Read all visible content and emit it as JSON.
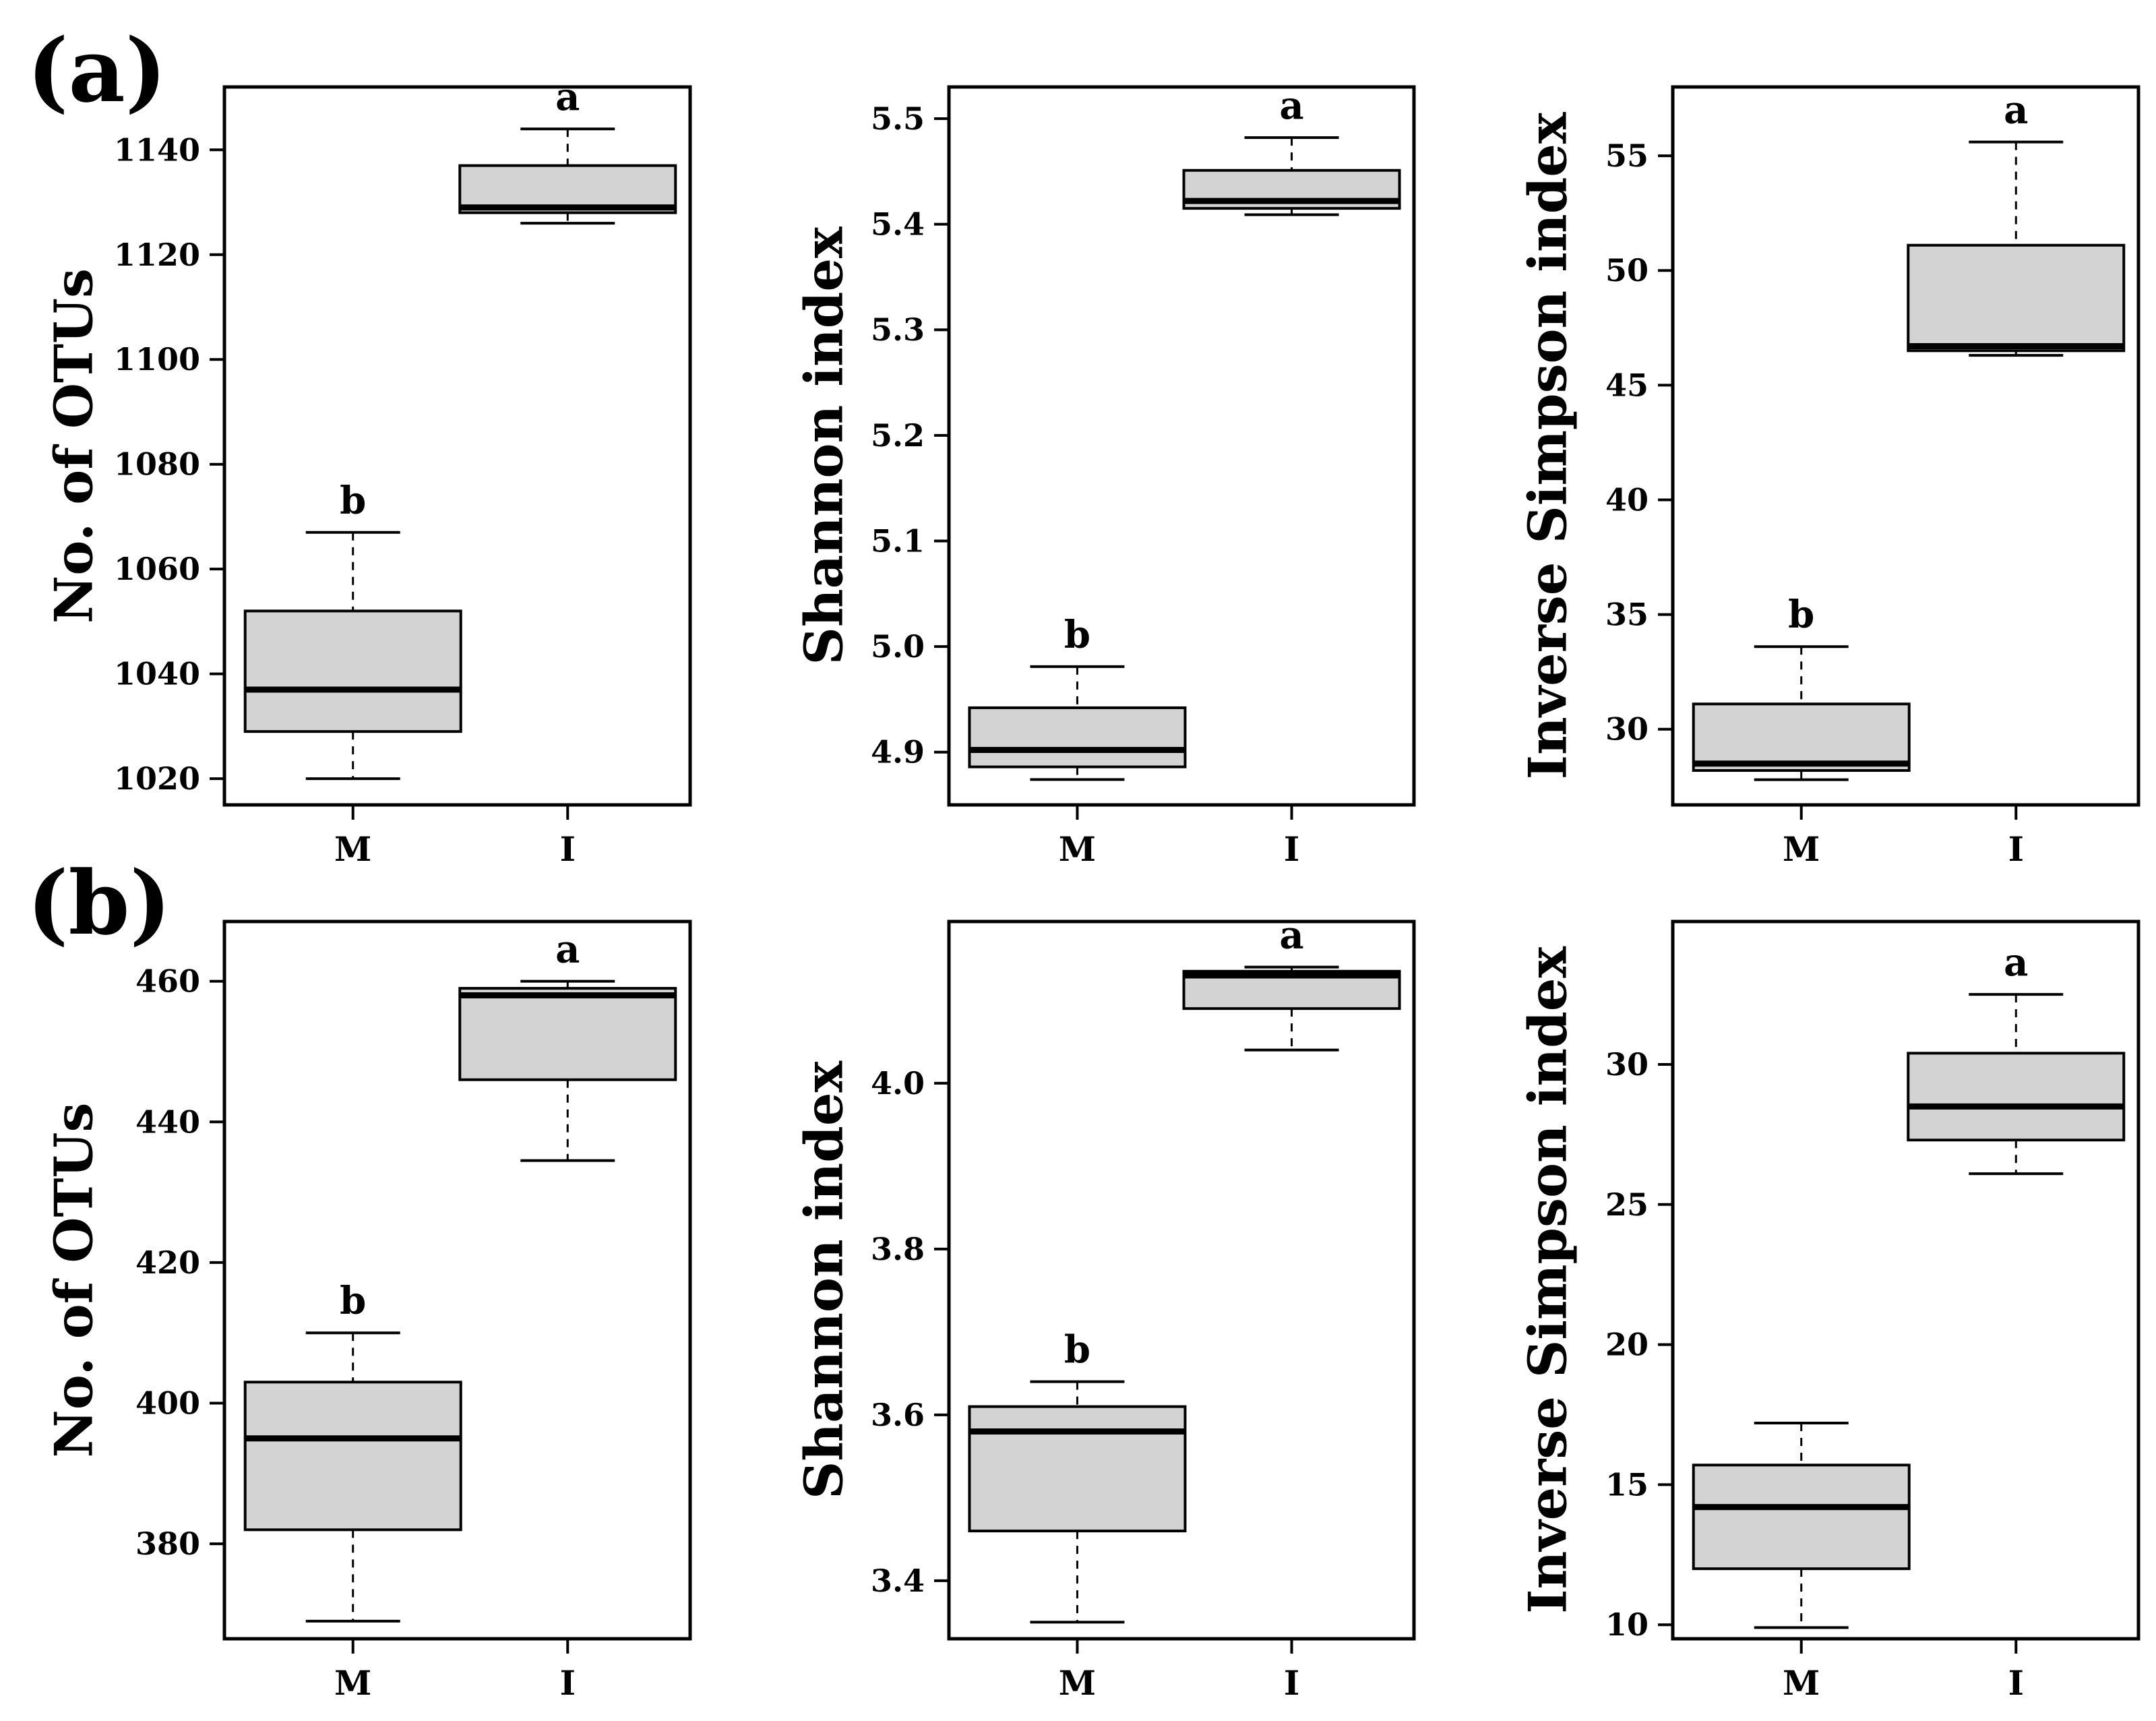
{
  "panel_labels": [
    "(a)",
    "(b)"
  ],
  "colors": {
    "box_fill": "#d3d3d3",
    "line": "#000000",
    "background": "#ffffff"
  },
  "chart_data": [
    {
      "type": "box",
      "panel": "(a)",
      "ylabel": "No. of OTUs",
      "categories": [
        "M",
        "I"
      ],
      "ylim": [
        1015,
        1152
      ],
      "yticks": [
        1020,
        1040,
        1060,
        1080,
        1100,
        1120,
        1140
      ],
      "ytick_labels": [
        "1020",
        "1040",
        "1060",
        "1080",
        "1100",
        "1120",
        "1140"
      ],
      "boxes": [
        {
          "name": "M",
          "min": 1020,
          "q1": 1029,
          "median": 1037,
          "q3": 1052,
          "max": 1067,
          "letter": "b"
        },
        {
          "name": "I",
          "min": 1126,
          "q1": 1128,
          "median": 1129,
          "q3": 1137,
          "max": 1144,
          "letter": "a"
        }
      ]
    },
    {
      "type": "box",
      "panel": "(a)",
      "ylabel": "Shannon index",
      "categories": [
        "M",
        "I"
      ],
      "ylim": [
        4.85,
        5.53
      ],
      "yticks": [
        4.9,
        5.0,
        5.1,
        5.2,
        5.3,
        5.4,
        5.5
      ],
      "ytick_labels": [
        "4.9",
        "5.0",
        "5.1",
        "5.2",
        "5.3",
        "5.4",
        "5.5"
      ],
      "boxes": [
        {
          "name": "M",
          "min": 4.874,
          "q1": 4.886,
          "median": 4.902,
          "q3": 4.942,
          "max": 4.981,
          "letter": "b"
        },
        {
          "name": "I",
          "min": 5.409,
          "q1": 5.415,
          "median": 5.422,
          "q3": 5.451,
          "max": 5.482,
          "letter": "a"
        }
      ]
    },
    {
      "type": "box",
      "panel": "(a)",
      "ylabel": "Inverse Simpson index",
      "categories": [
        "M",
        "I"
      ],
      "ylim": [
        26.7,
        58.0
      ],
      "yticks": [
        30,
        35,
        40,
        45,
        50,
        55
      ],
      "ytick_labels": [
        "30",
        "35",
        "40",
        "45",
        "50",
        "55"
      ],
      "boxes": [
        {
          "name": "M",
          "min": 27.8,
          "q1": 28.2,
          "median": 28.5,
          "q3": 31.1,
          "max": 33.6,
          "letter": "b"
        },
        {
          "name": "I",
          "min": 46.3,
          "q1": 46.5,
          "median": 46.7,
          "q3": 51.1,
          "max": 55.6,
          "letter": "a"
        }
      ]
    },
    {
      "type": "box",
      "panel": "(b)",
      "ylabel": "No. of OTUs",
      "categories": [
        "M",
        "I"
      ],
      "ylim": [
        366.5,
        468.5
      ],
      "yticks": [
        380,
        400,
        420,
        440,
        460
      ],
      "ytick_labels": [
        "380",
        "400",
        "420",
        "440",
        "460"
      ],
      "boxes": [
        {
          "name": "M",
          "min": 369,
          "q1": 382,
          "median": 395,
          "q3": 403,
          "max": 410,
          "letter": "b"
        },
        {
          "name": "I",
          "min": 434.5,
          "q1": 446,
          "median": 458,
          "q3": 459,
          "max": 460,
          "letter": "a"
        }
      ]
    },
    {
      "type": "box",
      "panel": "(b)",
      "ylabel": "Shannon index",
      "categories": [
        "M",
        "I"
      ],
      "ylim": [
        3.33,
        4.195
      ],
      "yticks": [
        3.4,
        3.6,
        3.8,
        4.0
      ],
      "ytick_labels": [
        "3.4",
        "3.6",
        "3.8",
        "4.0"
      ],
      "boxes": [
        {
          "name": "M",
          "min": 3.35,
          "q1": 3.46,
          "median": 3.58,
          "q3": 3.61,
          "max": 3.64,
          "letter": "b"
        },
        {
          "name": "I",
          "min": 4.04,
          "q1": 4.09,
          "median": 4.13,
          "q3": 4.135,
          "max": 4.14,
          "letter": "a"
        }
      ]
    },
    {
      "type": "box",
      "panel": "(b)",
      "ylabel": "Inverse Simpson index",
      "categories": [
        "M",
        "I"
      ],
      "ylim": [
        9.5,
        35.1
      ],
      "yticks": [
        10,
        15,
        20,
        25,
        30
      ],
      "ytick_labels": [
        "10",
        "15",
        "20",
        "25",
        "30"
      ],
      "boxes": [
        {
          "name": "M",
          "min": 9.9,
          "q1": 12.0,
          "median": 14.2,
          "q3": 15.7,
          "max": 17.2,
          "letter": ""
        },
        {
          "name": "I",
          "min": 26.1,
          "q1": 27.3,
          "median": 28.5,
          "q3": 30.4,
          "max": 32.5,
          "letter": "a"
        }
      ]
    }
  ]
}
